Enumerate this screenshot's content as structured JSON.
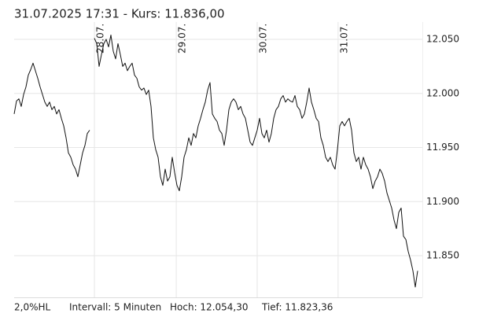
{
  "chart_data": {
    "type": "line",
    "title": "31.07.2025 17:31  -  Kurs: 11.836,00",
    "footer": [
      "2,0%HL",
      "Intervall: 5 Minuten",
      "Hoch:  12.054,30",
      "Tief:  11.823,36"
    ],
    "color": "#111111",
    "grid": true,
    "xlim": [
      0,
      173
    ],
    "xticks": [
      {
        "value": 34,
        "label": "28.07."
      },
      {
        "value": 68.7,
        "label": "29.07."
      },
      {
        "value": 103,
        "label": "30.07."
      },
      {
        "value": 137.3,
        "label": "31.07."
      }
    ],
    "ylim": [
      11811.5,
      12066
    ],
    "yticks": [
      {
        "value": 11850,
        "label": "11.850"
      },
      {
        "value": 11900,
        "label": "11.900"
      },
      {
        "value": 11950,
        "label": "11.950"
      },
      {
        "value": 12000,
        "label": "12.000"
      },
      {
        "value": 12050,
        "label": "12.050"
      }
    ],
    "values": [
      11981,
      11993,
      11995,
      11988,
      11999,
      12006,
      12017,
      12022,
      12028,
      12021,
      12014,
      12006,
      11999,
      11992,
      11988,
      11992,
      11985,
      11988,
      11981,
      11985,
      11977,
      11970,
      11959,
      11945,
      11941,
      11934,
      11930,
      11923,
      11934,
      11945,
      11952,
      11963,
      11966,
      null,
      12051,
      12046,
      12025,
      12036,
      12046,
      12050,
      12043,
      12054,
      12039,
      12032,
      12046,
      12036,
      12025,
      12028,
      12021,
      12025,
      12028,
      12017,
      12014,
      12006,
      12003,
      12005,
      11999,
      12003,
      11988,
      11959,
      11948,
      11941,
      11923,
      11915,
      11930,
      11919,
      11923,
      11941,
      11927,
      11915,
      11910,
      11923,
      11941,
      11948,
      11959,
      11952,
      11963,
      11959,
      11970,
      11977,
      11985,
      11992,
      12003,
      12010,
      11981,
      11977,
      11974,
      11966,
      11963,
      11952,
      11966,
      11985,
      11992,
      11995,
      11992,
      11985,
      11988,
      11981,
      11977,
      11966,
      11955,
      11952,
      11959,
      11966,
      11977,
      11963,
      11959,
      11966,
      11955,
      11963,
      11977,
      11985,
      11988,
      11995,
      11998,
      11992,
      11995,
      11993,
      11992,
      11998,
      11988,
      11985,
      11977,
      11981,
      11992,
      12005,
      11992,
      11985,
      11977,
      11974,
      11959,
      11952,
      11941,
      11937,
      11941,
      11934,
      11930,
      11948,
      11970,
      11974,
      11970,
      11974,
      11977,
      11966,
      11945,
      11937,
      11941,
      11930,
      11941,
      11934,
      11930,
      11923,
      11912,
      11919,
      11923,
      11930,
      11926,
      11919,
      11908,
      11901,
      11894,
      11883,
      11875,
      11890,
      11894,
      11868,
      11865,
      11854,
      11846,
      11836,
      11821,
      11836
    ]
  }
}
